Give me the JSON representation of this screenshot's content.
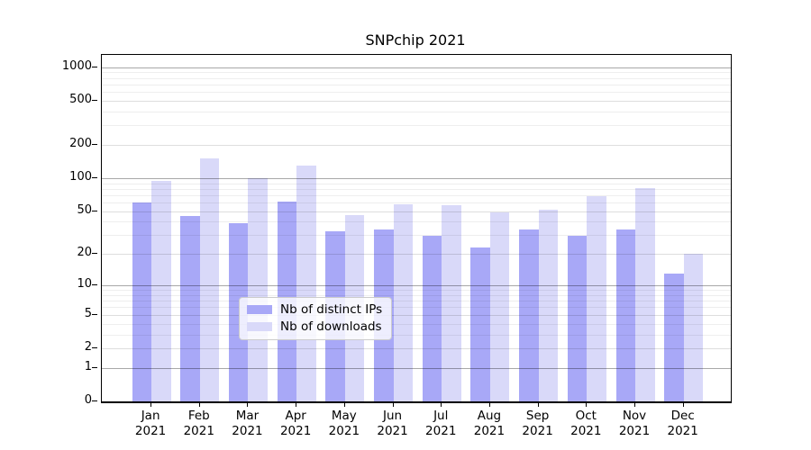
{
  "title": "SNPchip 2021",
  "chart_data": {
    "type": "bar",
    "title": "SNPchip 2021",
    "categories": [
      "Jan",
      "Feb",
      "Mar",
      "Apr",
      "May",
      "Jun",
      "Jul",
      "Aug",
      "Sep",
      "Oct",
      "Nov",
      "Dec"
    ],
    "year": "2021",
    "series": [
      {
        "name": "Nb of distinct IPs",
        "color": "#a8a8f7",
        "values": [
          60,
          45,
          39,
          61,
          33,
          34,
          30,
          23,
          34,
          30,
          34,
          13
        ]
      },
      {
        "name": "Nb of downloads",
        "color": "#d9d9f9",
        "values": [
          95,
          150,
          100,
          130,
          46,
          58,
          57,
          49,
          52,
          69,
          82,
          20
        ]
      }
    ],
    "xlabel": "",
    "ylabel": "",
    "y_scale": "log1p",
    "y_ticks": [
      "1000",
      "500",
      "200",
      "100",
      "50",
      "20",
      "10",
      "5",
      "2",
      "1",
      "0"
    ],
    "ylim": [
      0,
      1290
    ],
    "grid": "major+minor",
    "legend_position": "lower center"
  }
}
